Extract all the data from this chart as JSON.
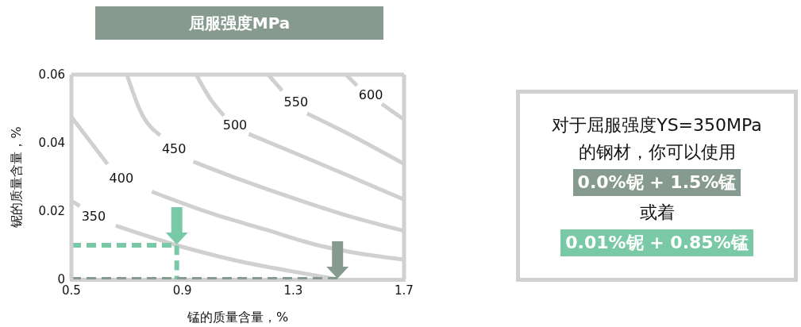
{
  "chart_data": {
    "type": "line",
    "title": "屈服强度MPa",
    "xlabel": "锰的质量含量，%",
    "ylabel": "铌的质量含量，%",
    "xlim": [
      0.5,
      1.7
    ],
    "xticks": [
      0.5,
      0.9,
      1.3,
      1.7
    ],
    "ylim": [
      0,
      0.06
    ],
    "yticks": [
      0,
      0.02,
      0.04,
      0.06
    ],
    "grid": false,
    "legend": false,
    "marker": "none",
    "series": [
      {
        "name": "350",
        "color": "#d0d0d0",
        "line_style": "solid",
        "x": [
          0.5,
          0.53,
          0.58,
          0.66,
          0.88,
          1.1,
          1.3,
          1.46
        ],
        "values": [
          0.023,
          0.0215,
          null,
          0.0157,
          0.01,
          0.0054,
          0.0023,
          0
        ]
      },
      {
        "name": "400",
        "color": "#d0d0d0",
        "line_style": "solid",
        "x": [
          0.5,
          0.63,
          0.68,
          0.79,
          1.01,
          1.2,
          1.39,
          1.7
        ],
        "values": [
          0.0476,
          0.0338,
          null,
          0.0257,
          0.0192,
          0.0146,
          0.01,
          0.0058
        ]
      },
      {
        "name": "450",
        "color": "#d0d0d0",
        "line_style": "solid",
        "x": [
          0.7,
          0.75,
          0.82,
          0.87,
          0.94,
          1.11,
          1.3,
          1.49,
          1.7
        ],
        "values": [
          0.06,
          0.0491,
          0.0422,
          null,
          0.0345,
          0.0292,
          0.0238,
          0.0188,
          0.0142
        ]
      },
      {
        "name": "500",
        "color": "#d0d0d0",
        "line_style": "solid",
        "x": [
          0.95,
          1.0,
          1.05,
          1.09,
          1.14,
          1.3,
          1.49,
          1.7
        ],
        "values": [
          0.06,
          0.053,
          0.048,
          null,
          0.0426,
          0.0372,
          0.0307,
          0.0234
        ]
      },
      {
        "name": "550",
        "color": "#d0d0d0",
        "line_style": "solid",
        "x": [
          1.21,
          1.26,
          1.31,
          1.35,
          1.49,
          1.7
        ],
        "values": [
          0.06,
          0.0553,
          null,
          0.0486,
          0.043,
          0.0338
        ]
      },
      {
        "name": "600",
        "color": "#d0d0d0",
        "line_style": "solid",
        "x": [
          1.49,
          1.53,
          1.58,
          1.62,
          1.7
        ],
        "values": [
          0.06,
          0.0568,
          null,
          0.0514,
          0.0468
        ]
      },
      {
        "color": "#7ac9a6",
        "line_style": "dashed",
        "x": [
          0.5,
          0.88,
          0.88
        ],
        "values": [
          0.01,
          0.01,
          0
        ]
      },
      {
        "color": "#869a8f",
        "line_style": "dashed",
        "x": [
          0.5,
          1.46
        ],
        "values": [
          0,
          0
        ]
      }
    ],
    "annotations": [
      "对于屈服强度YS=350MPa",
      "的钢材，你可以使用",
      "0.0%铌 + 1.5%锰",
      "或着",
      "0.01%铌 + 0.85%锰"
    ]
  }
}
